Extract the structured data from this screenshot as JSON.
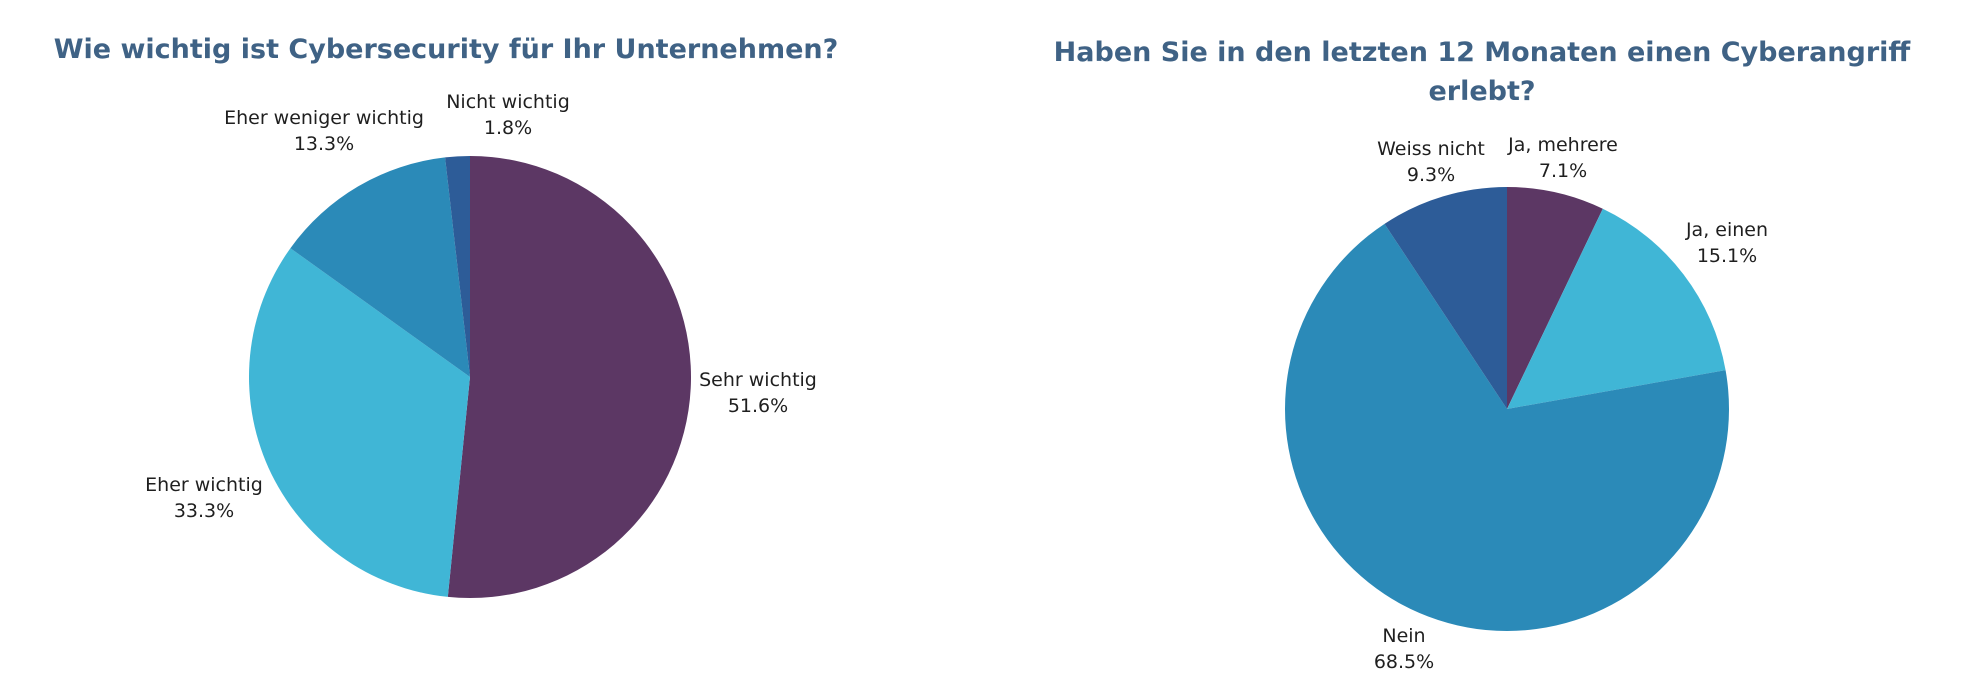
{
  "chart_data": [
    {
      "type": "pie",
      "title": "Wie wichtig ist Cybersecurity für Ihr Unternehmen?",
      "slices": [
        {
          "label": "Sehr wichtig",
          "value_text": "51.6%",
          "value": 51.6,
          "color": "#5c3764"
        },
        {
          "label": "Eher wichtig",
          "value_text": "33.3%",
          "value": 33.3,
          "color": "#40b6d6"
        },
        {
          "label": "Eher weniger wichtig",
          "value_text": "13.3%",
          "value": 13.3,
          "color": "#2b8ab8"
        },
        {
          "label": "Nicht wichtig",
          "value_text": "1.8%",
          "value": 1.8,
          "color": "#2d5c98"
        }
      ],
      "start_angle_deg": 0,
      "direction": "clockwise"
    },
    {
      "type": "pie",
      "title": "Haben Sie in den letzten 12 Monaten einen Cyberangriff erlebt?",
      "title_lines": [
        "Haben Sie in den letzten 12 Monaten einen Cyberangriff",
        "erlebt?"
      ],
      "slices": [
        {
          "label": "Ja, mehrere",
          "value_text": "7.1%",
          "value": 7.1,
          "color": "#5c3764"
        },
        {
          "label": "Ja, einen",
          "value_text": "15.1%",
          "value": 15.1,
          "color": "#40b6d6"
        },
        {
          "label": "Nein",
          "value_text": "68.5%",
          "value": 68.5,
          "color": "#2b8ab8"
        },
        {
          "label": "Weiss nicht",
          "value_text": "9.3%",
          "value": 9.3,
          "color": "#2d5c98"
        }
      ],
      "start_angle_deg": 0,
      "direction": "clockwise"
    }
  ]
}
